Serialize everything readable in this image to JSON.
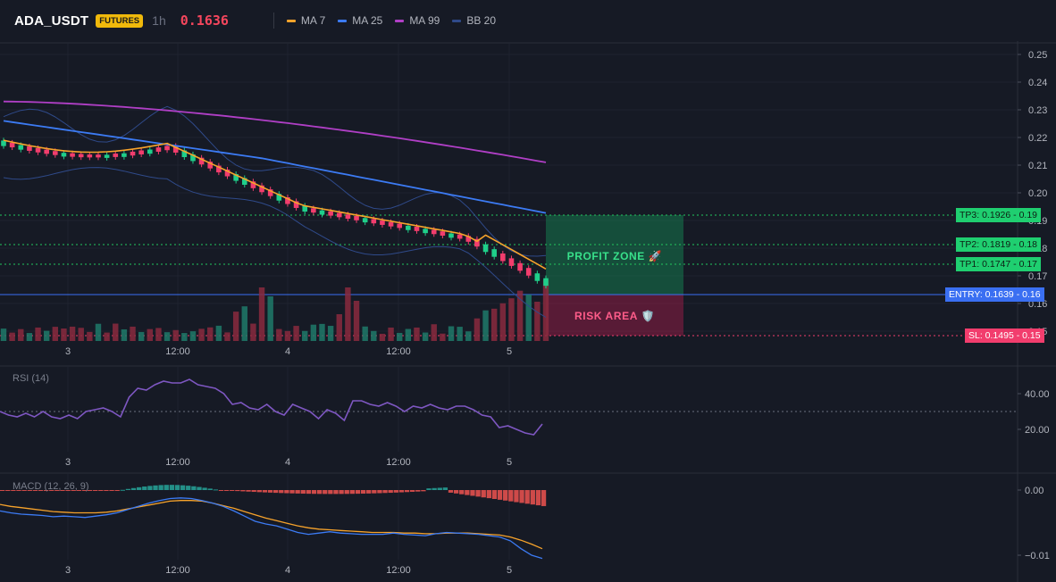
{
  "header": {
    "symbol": "ADA_USDT",
    "badge": "FUTURES",
    "timeframe": "1h",
    "last_price": "0.1636"
  },
  "legend": [
    {
      "name": "MA 7",
      "color": "#f7a32b"
    },
    {
      "name": "MA 25",
      "color": "#3c7bf4"
    },
    {
      "name": "MA 99",
      "color": "#b03fc6"
    },
    {
      "name": "BB 20",
      "color": "#2f4a8a"
    }
  ],
  "price_axis": [
    "0.25",
    "0.24",
    "0.23",
    "0.22",
    "0.21",
    "0.20",
    "0.19",
    "0.18",
    "0.17",
    "0.16",
    "0.15"
  ],
  "time_axis": [
    "3",
    "12:00",
    "4",
    "12:00",
    "5"
  ],
  "levels": [
    {
      "label": "TP3: 0.1926",
      "axis": "0.19",
      "price": 0.1926,
      "color": "#22c55e",
      "style": "dotted"
    },
    {
      "label": "TP2: 0.1819",
      "axis": "0.18",
      "price": 0.1819,
      "color": "#22c55e",
      "style": "dotted"
    },
    {
      "label": "TP1: 0.1747",
      "axis": "0.17",
      "price": 0.1747,
      "color": "#22c55e",
      "style": "dotted"
    },
    {
      "label": "ENTRY: 0.1639",
      "axis": "0.16",
      "price": 0.1639,
      "color": "#3a6ff2",
      "style": "solid"
    },
    {
      "label": "SL: 0.1495",
      "axis": "0.15",
      "price": 0.1495,
      "color": "#f23d6d",
      "style": "dotted"
    }
  ],
  "zones": {
    "profit": "PROFIT ZONE 🚀",
    "risk": "RISK AREA 🛡️"
  },
  "rsi": {
    "title": "RSI (14)",
    "axis": [
      "40.00",
      "20.00"
    ],
    "values": [
      30,
      28,
      27,
      29,
      27,
      30,
      27,
      26,
      28,
      26,
      30,
      31,
      32,
      30,
      27,
      38,
      43,
      42,
      45,
      47,
      46,
      46,
      48,
      45,
      44,
      43,
      40,
      34,
      35,
      32,
      31,
      34,
      30,
      28,
      34,
      32,
      30,
      26,
      31,
      29,
      25,
      36,
      36,
      34,
      33,
      35,
      33,
      30,
      33,
      32,
      34,
      32,
      31,
      33,
      33,
      31,
      28,
      27,
      21,
      22,
      20,
      18,
      17,
      23
    ]
  },
  "macd": {
    "title": "MACD (12, 26, 9)",
    "axis": [
      "0.00",
      "−0.01"
    ],
    "macd_line": [
      -0.0032,
      -0.0035,
      -0.0037,
      -0.0038,
      -0.0039,
      -0.0041,
      -0.004,
      -0.0041,
      -0.0042,
      -0.004,
      -0.0038,
      -0.0035,
      -0.003,
      -0.0025,
      -0.002,
      -0.0016,
      -0.0013,
      -0.0012,
      -0.0013,
      -0.0016,
      -0.002,
      -0.0025,
      -0.0032,
      -0.004,
      -0.0048,
      -0.0052,
      -0.0055,
      -0.006,
      -0.0065,
      -0.0068,
      -0.0066,
      -0.0064,
      -0.0066,
      -0.0067,
      -0.0068,
      -0.0068,
      -0.0068,
      -0.0066,
      -0.0068,
      -0.0069,
      -0.007,
      -0.0067,
      -0.0065,
      -0.0066,
      -0.0067,
      -0.0068,
      -0.007,
      -0.0072,
      -0.0078,
      -0.009,
      -0.01,
      -0.0105
    ],
    "signal_line": [
      -0.0022,
      -0.0025,
      -0.0027,
      -0.0029,
      -0.0031,
      -0.0033,
      -0.0034,
      -0.0035,
      -0.0035,
      -0.0035,
      -0.0034,
      -0.0032,
      -0.0029,
      -0.0026,
      -0.0023,
      -0.002,
      -0.0017,
      -0.0016,
      -0.0016,
      -0.0017,
      -0.002,
      -0.0024,
      -0.0028,
      -0.0033,
      -0.0038,
      -0.0043,
      -0.0047,
      -0.0051,
      -0.0055,
      -0.0058,
      -0.006,
      -0.0061,
      -0.0062,
      -0.0063,
      -0.0064,
      -0.0065,
      -0.0065,
      -0.0065,
      -0.0066,
      -0.0066,
      -0.0067,
      -0.0067,
      -0.0066,
      -0.0066,
      -0.0066,
      -0.0067,
      -0.0068,
      -0.0069,
      -0.0072,
      -0.0077,
      -0.0083,
      -0.009
    ]
  }
}
